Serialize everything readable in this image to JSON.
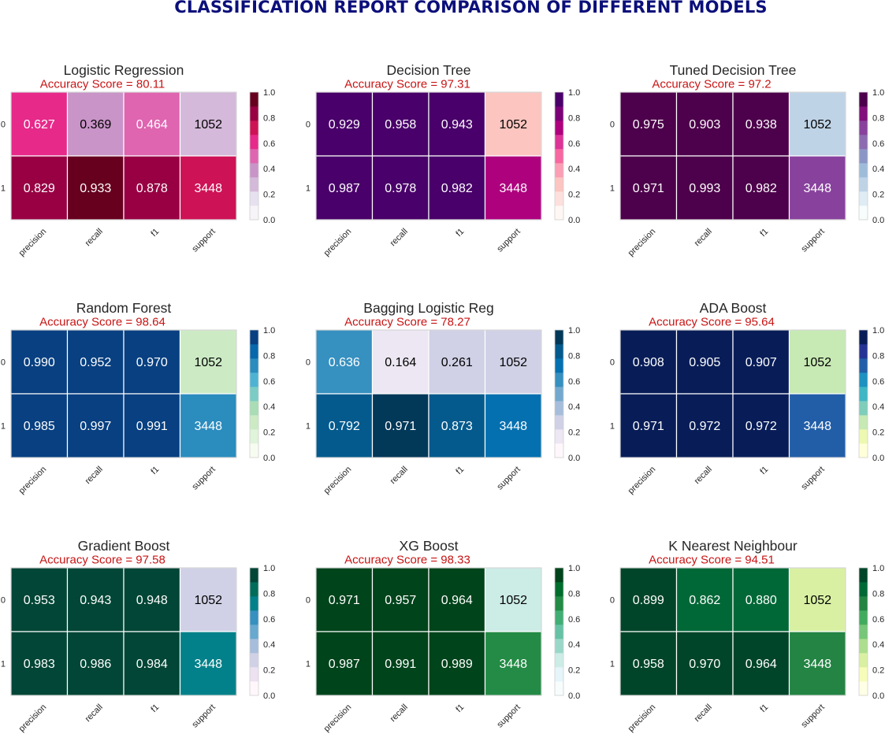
{
  "page_title": "CLASSIFICATION REPORT COMPARISON OF DIFFERENT MODELS",
  "accuracy_prefix": "Accuracy Score = ",
  "colors": {
    "title": "#0b0f7a",
    "accuracy": "#c81414",
    "grid_line": "#ffffff"
  },
  "chart_data": [
    {
      "type": "heatmap",
      "title": "Logistic Regression",
      "accuracy_score": "80.11",
      "x_labels": [
        "precision",
        "recall",
        "f1",
        "support"
      ],
      "y_labels": [
        "0",
        "1"
      ],
      "cell_labels": [
        [
          "0.627",
          "0.369",
          "0.464",
          "1052"
        ],
        [
          "0.829",
          "0.933",
          "0.878",
          "3448"
        ]
      ],
      "values": [
        [
          0.627,
          0.369,
          0.464,
          0.3
        ],
        [
          0.829,
          0.933,
          0.878,
          0.75
        ]
      ],
      "colorbar_ticks": [
        "0.0",
        "0.2",
        "0.4",
        "0.6",
        "0.8",
        "1.0"
      ],
      "cmap": "PuRd",
      "cmap_colors": [
        "#f7f4f9",
        "#e7e1ef",
        "#d4b9da",
        "#c994c7",
        "#df65b0",
        "#e7298a",
        "#ce1256",
        "#980043",
        "#67001f"
      ]
    },
    {
      "type": "heatmap",
      "title": "Decision Tree",
      "accuracy_score": "97.31",
      "x_labels": [
        "precision",
        "recall",
        "f1",
        "support"
      ],
      "y_labels": [
        "0",
        "1"
      ],
      "cell_labels": [
        [
          "0.929",
          "0.958",
          "0.943",
          "1052"
        ],
        [
          "0.987",
          "0.978",
          "0.982",
          "3448"
        ]
      ],
      "values": [
        [
          0.929,
          0.958,
          0.943,
          0.3
        ],
        [
          0.987,
          0.978,
          0.982,
          0.75
        ]
      ],
      "colorbar_ticks": [
        "0.0",
        "0.2",
        "0.4",
        "0.6",
        "0.8",
        "1.0"
      ],
      "cmap": "RdPu",
      "cmap_colors": [
        "#fff7f3",
        "#fde0dd",
        "#fcc5c0",
        "#fa9fb5",
        "#f768a1",
        "#dd3497",
        "#ae017e",
        "#7a0177",
        "#49006a"
      ]
    },
    {
      "type": "heatmap",
      "title": "Tuned Decision Tree",
      "accuracy_score": "97.2",
      "x_labels": [
        "precision",
        "recall",
        "f1",
        "support"
      ],
      "y_labels": [
        "0",
        "1"
      ],
      "cell_labels": [
        [
          "0.975",
          "0.903",
          "0.938",
          "1052"
        ],
        [
          "0.971",
          "0.993",
          "0.982",
          "3448"
        ]
      ],
      "values": [
        [
          0.975,
          0.903,
          0.938,
          0.3
        ],
        [
          0.971,
          0.993,
          0.982,
          0.75
        ]
      ],
      "colorbar_ticks": [
        "0.0",
        "0.2",
        "0.4",
        "0.6",
        "0.8",
        "1.0"
      ],
      "cmap": "BuPu",
      "cmap_colors": [
        "#f7fcfd",
        "#e0ecf4",
        "#bfd3e6",
        "#9ebcda",
        "#8c96c6",
        "#8c6bb1",
        "#88419d",
        "#810f7c",
        "#4d004b"
      ]
    },
    {
      "type": "heatmap",
      "title": "Random Forest",
      "accuracy_score": "98.64",
      "x_labels": [
        "precision",
        "recall",
        "f1",
        "support"
      ],
      "y_labels": [
        "0",
        "1"
      ],
      "cell_labels": [
        [
          "0.990",
          "0.952",
          "0.970",
          "1052"
        ],
        [
          "0.985",
          "0.997",
          "0.991",
          "3448"
        ]
      ],
      "values": [
        [
          0.99,
          0.952,
          0.97,
          0.3
        ],
        [
          0.985,
          0.997,
          0.991,
          0.75
        ]
      ],
      "colorbar_ticks": [
        "0.0",
        "0.2",
        "0.4",
        "0.6",
        "0.8",
        "1.0"
      ],
      "cmap": "GnBu",
      "cmap_colors": [
        "#f7fcf0",
        "#e0f3db",
        "#ccebc5",
        "#a8ddb5",
        "#7bccc4",
        "#4eb3d3",
        "#2b8cbe",
        "#0868ac",
        "#084081"
      ]
    },
    {
      "type": "heatmap",
      "title": "Bagging Logistic Reg",
      "accuracy_score": "78.27",
      "x_labels": [
        "precision",
        "recall",
        "f1",
        "support"
      ],
      "y_labels": [
        "0",
        "1"
      ],
      "cell_labels": [
        [
          "0.636",
          "0.164",
          "0.261",
          "1052"
        ],
        [
          "0.792",
          "0.971",
          "0.873",
          "3448"
        ]
      ],
      "values": [
        [
          0.636,
          0.164,
          0.261,
          0.3
        ],
        [
          0.792,
          0.971,
          0.873,
          0.75
        ]
      ],
      "colorbar_ticks": [
        "0.0",
        "0.2",
        "0.4",
        "0.6",
        "0.8",
        "1.0"
      ],
      "cmap": "PuBu",
      "cmap_colors": [
        "#fff7fb",
        "#ece7f2",
        "#d0d1e6",
        "#a6bddb",
        "#74a9cf",
        "#3690c0",
        "#0570b0",
        "#045a8d",
        "#023858"
      ]
    },
    {
      "type": "heatmap",
      "title": "ADA Boost",
      "accuracy_score": "95.64",
      "x_labels": [
        "precision",
        "recall",
        "f1",
        "support"
      ],
      "y_labels": [
        "0",
        "1"
      ],
      "cell_labels": [
        [
          "0.908",
          "0.905",
          "0.907",
          "1052"
        ],
        [
          "0.971",
          "0.972",
          "0.972",
          "3448"
        ]
      ],
      "values": [
        [
          0.908,
          0.905,
          0.907,
          0.3
        ],
        [
          0.971,
          0.972,
          0.972,
          0.75
        ]
      ],
      "colorbar_ticks": [
        "0.0",
        "0.2",
        "0.4",
        "0.6",
        "0.8",
        "1.0"
      ],
      "cmap": "YlGnBu",
      "cmap_colors": [
        "#ffffd9",
        "#edf8b1",
        "#c7e9b4",
        "#7fcdbb",
        "#41b6c4",
        "#1d91c0",
        "#225ea8",
        "#253494",
        "#081d58"
      ]
    },
    {
      "type": "heatmap",
      "title": "Gradient Boost",
      "accuracy_score": "97.58",
      "x_labels": [
        "precision",
        "recall",
        "f1",
        "support"
      ],
      "y_labels": [
        "0",
        "1"
      ],
      "cell_labels": [
        [
          "0.953",
          "0.943",
          "0.948",
          "1052"
        ],
        [
          "0.983",
          "0.986",
          "0.984",
          "3448"
        ]
      ],
      "values": [
        [
          0.953,
          0.943,
          0.948,
          0.3
        ],
        [
          0.983,
          0.986,
          0.984,
          0.75
        ]
      ],
      "colorbar_ticks": [
        "0.0",
        "0.2",
        "0.4",
        "0.6",
        "0.8",
        "1.0"
      ],
      "cmap": "PuBuGn",
      "cmap_colors": [
        "#fff7fb",
        "#ece2f0",
        "#d0d1e6",
        "#a6bddb",
        "#67a9cf",
        "#3690c0",
        "#02818a",
        "#016c59",
        "#014636"
      ]
    },
    {
      "type": "heatmap",
      "title": "XG Boost",
      "accuracy_score": "98.33",
      "x_labels": [
        "precision",
        "recall",
        "f1",
        "support"
      ],
      "y_labels": [
        "0",
        "1"
      ],
      "cell_labels": [
        [
          "0.971",
          "0.957",
          "0.964",
          "1052"
        ],
        [
          "0.987",
          "0.991",
          "0.989",
          "3448"
        ]
      ],
      "values": [
        [
          0.971,
          0.957,
          0.964,
          0.3
        ],
        [
          0.987,
          0.991,
          0.989,
          0.75
        ]
      ],
      "colorbar_ticks": [
        "0.0",
        "0.2",
        "0.4",
        "0.6",
        "0.8",
        "1.0"
      ],
      "cmap": "BuGn",
      "cmap_colors": [
        "#f7fcfd",
        "#e5f5f9",
        "#ccece6",
        "#99d8c9",
        "#66c2a4",
        "#41ae76",
        "#238b45",
        "#006d2c",
        "#00441b"
      ]
    },
    {
      "type": "heatmap",
      "title": "K Nearest Neighbour",
      "accuracy_score": "94.51",
      "x_labels": [
        "precision",
        "recall",
        "f1",
        "support"
      ],
      "y_labels": [
        "0",
        "1"
      ],
      "cell_labels": [
        [
          "0.899",
          "0.862",
          "0.880",
          "1052"
        ],
        [
          "0.958",
          "0.970",
          "0.964",
          "3448"
        ]
      ],
      "values": [
        [
          0.899,
          0.862,
          0.88,
          0.3
        ],
        [
          0.958,
          0.97,
          0.964,
          0.75
        ]
      ],
      "colorbar_ticks": [
        "0.0",
        "0.2",
        "0.4",
        "0.6",
        "0.8",
        "1.0"
      ],
      "cmap": "YlGn",
      "cmap_colors": [
        "#ffffe5",
        "#f7fcb9",
        "#d9f0a3",
        "#addd8e",
        "#78c679",
        "#41ab5d",
        "#238443",
        "#006837",
        "#004529"
      ]
    }
  ]
}
